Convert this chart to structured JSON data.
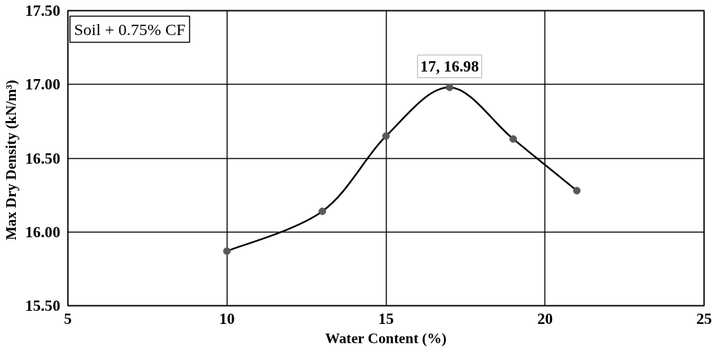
{
  "chart_data": {
    "type": "line",
    "xlabel": "Water Content (%)",
    "ylabel": "Max Dry Density  (kN/m³)",
    "x": [
      10,
      13,
      15,
      17,
      19,
      21
    ],
    "series": [
      {
        "color": "#000000",
        "values": [
          15.87,
          16.14,
          16.65,
          16.98,
          16.63,
          16.28
        ]
      }
    ],
    "marker": "circle",
    "line_style": "solid",
    "grid": true,
    "xlim": [
      5,
      25
    ],
    "xticks": [
      5,
      10,
      15,
      20,
      25
    ],
    "ylim": [
      15.5,
      17.5
    ],
    "yticks": [
      {
        "value": 15.5,
        "label": "15.50"
      },
      {
        "value": 16.0,
        "label": "16.00"
      },
      {
        "value": 16.5,
        "label": "16.50"
      },
      {
        "value": 17.0,
        "label": "17.00"
      },
      {
        "value": 17.5,
        "label": "17.50"
      }
    ],
    "annotations": [
      "Soil + 0.75% CF",
      {
        "text": "17, 16.98",
        "x": 17,
        "y": 16.98
      }
    ]
  }
}
